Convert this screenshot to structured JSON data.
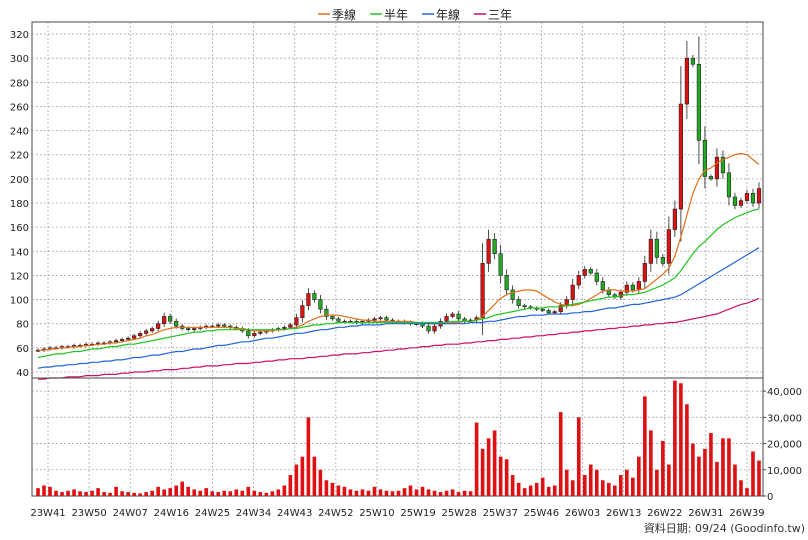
{
  "legend": [
    {
      "label": "季線",
      "color": "#e0701a"
    },
    {
      "label": "半年",
      "color": "#22c322"
    },
    {
      "label": "年線",
      "color": "#2266dd"
    },
    {
      "label": "三年",
      "color": "#cc1166"
    }
  ],
  "credit": "資料日期: 09/24  (Goodinfo.tw)",
  "chart_data": {
    "type": "candlestick+volume",
    "x_ticks": [
      "23W41",
      "23W50",
      "24W07",
      "24W16",
      "24W25",
      "24W34",
      "24W43",
      "24W52",
      "25W10",
      "25W19",
      "25W28",
      "25W37",
      "25W46",
      "26W03",
      "26W13",
      "26W22",
      "26W31",
      "26W39"
    ],
    "price_axis": {
      "ylim": [
        35,
        330
      ],
      "ticks": [
        40,
        60,
        80,
        100,
        120,
        140,
        160,
        180,
        200,
        220,
        240,
        260,
        280,
        300,
        320
      ]
    },
    "volume_axis": {
      "ylim": [
        0,
        45000
      ],
      "ticks": [
        0,
        10000,
        20000,
        30000,
        40000
      ],
      "tick_labels": [
        "0",
        "10,000",
        "20,000",
        "30,000",
        "40,000"
      ]
    },
    "close": [
      58,
      59,
      60,
      60,
      61,
      61,
      62,
      62,
      63,
      63,
      64,
      64,
      65,
      66,
      67,
      68,
      70,
      72,
      74,
      76,
      80,
      86,
      82,
      78,
      76,
      75,
      76,
      77,
      78,
      78,
      79,
      78,
      77,
      76,
      74,
      70,
      72,
      73,
      74,
      75,
      76,
      77,
      79,
      85,
      95,
      105,
      100,
      92,
      86,
      84,
      82,
      82,
      82,
      81,
      82,
      83,
      84,
      85,
      83,
      82,
      82,
      81,
      80,
      80,
      78,
      74,
      78,
      82,
      86,
      88,
      84,
      82,
      83,
      85,
      130,
      150,
      138,
      120,
      108,
      100,
      95,
      94,
      93,
      92,
      91,
      89,
      90,
      95,
      100,
      112,
      120,
      125,
      122,
      115,
      108,
      104,
      102,
      106,
      112,
      108,
      115,
      130,
      150,
      135,
      130,
      158,
      175,
      262,
      300,
      295,
      232,
      202,
      200,
      218,
      205,
      185,
      178,
      182,
      188,
      180,
      192
    ],
    "ma_quarter": [
      58,
      58,
      59,
      59,
      60,
      60,
      61,
      61,
      62,
      62,
      63,
      63,
      64,
      64,
      65,
      66,
      67,
      68,
      70,
      71,
      73,
      75,
      76,
      77,
      77,
      77,
      77,
      77,
      77,
      77,
      77,
      77,
      77,
      76,
      76,
      75,
      74,
      74,
      74,
      74,
      75,
      75,
      76,
      77,
      79,
      82,
      84,
      86,
      87,
      87,
      87,
      86,
      85,
      84,
      83,
      83,
      82,
      82,
      82,
      82,
      82,
      82,
      82,
      81,
      81,
      80,
      80,
      80,
      80,
      81,
      81,
      82,
      82,
      83,
      86,
      91,
      96,
      101,
      104,
      106,
      107,
      108,
      108,
      107,
      104,
      101,
      98,
      96,
      95,
      95,
      96,
      98,
      101,
      104,
      107,
      108,
      108,
      107,
      107,
      107,
      108,
      109,
      113,
      117,
      121,
      126,
      136,
      152,
      170,
      188,
      200,
      207,
      209,
      213,
      216,
      218,
      220,
      221,
      220,
      216,
      212
    ],
    "ma_half": [
      52,
      53,
      54,
      55,
      55,
      56,
      57,
      57,
      58,
      59,
      59,
      60,
      61,
      61,
      62,
      63,
      63,
      64,
      65,
      66,
      67,
      68,
      69,
      70,
      71,
      72,
      73,
      73,
      74,
      74,
      75,
      75,
      75,
      75,
      75,
      75,
      75,
      75,
      75,
      75,
      75,
      75,
      76,
      76,
      77,
      78,
      79,
      79,
      80,
      80,
      81,
      81,
      81,
      81,
      81,
      81,
      81,
      81,
      81,
      81,
      81,
      81,
      81,
      81,
      81,
      81,
      81,
      81,
      81,
      82,
      82,
      82,
      82,
      83,
      84,
      85,
      87,
      88,
      89,
      90,
      91,
      92,
      93,
      93,
      93,
      94,
      94,
      94,
      95,
      96,
      97,
      98,
      99,
      100,
      101,
      102,
      102,
      103,
      104,
      104,
      105,
      106,
      108,
      110,
      112,
      115,
      118,
      124,
      131,
      138,
      144,
      148,
      153,
      158,
      162,
      165,
      168,
      170,
      172,
      174,
      175
    ],
    "ma_year": [
      43,
      44,
      44,
      45,
      45,
      46,
      46,
      47,
      47,
      48,
      48,
      49,
      49,
      50,
      50,
      51,
      52,
      52,
      53,
      54,
      54,
      55,
      56,
      57,
      57,
      58,
      59,
      59,
      60,
      61,
      62,
      62,
      63,
      64,
      65,
      65,
      66,
      67,
      68,
      68,
      69,
      70,
      71,
      72,
      72,
      73,
      74,
      75,
      75,
      76,
      77,
      77,
      78,
      78,
      79,
      79,
      79,
      79,
      80,
      80,
      80,
      80,
      80,
      80,
      80,
      80,
      80,
      80,
      80,
      80,
      80,
      80,
      81,
      81,
      81,
      82,
      82,
      83,
      84,
      85,
      86,
      86,
      87,
      87,
      87,
      88,
      88,
      88,
      88,
      89,
      89,
      90,
      90,
      91,
      92,
      93,
      93,
      94,
      95,
      96,
      96,
      97,
      98,
      99,
      100,
      101,
      102,
      104,
      107,
      110,
      113,
      116,
      119,
      122,
      125,
      128,
      131,
      134,
      137,
      140,
      143
    ],
    "ma_3y": [
      34,
      34,
      35,
      35,
      35,
      36,
      36,
      36,
      37,
      37,
      37,
      38,
      38,
      38,
      39,
      39,
      40,
      40,
      40,
      41,
      41,
      42,
      42,
      42,
      43,
      43,
      44,
      44,
      45,
      45,
      45,
      46,
      46,
      47,
      47,
      47,
      48,
      48,
      49,
      49,
      50,
      50,
      51,
      51,
      51,
      52,
      52,
      53,
      53,
      54,
      54,
      55,
      55,
      55,
      56,
      56,
      57,
      57,
      58,
      58,
      59,
      59,
      60,
      60,
      61,
      61,
      62,
      62,
      63,
      63,
      63,
      64,
      64,
      65,
      65,
      66,
      66,
      67,
      67,
      68,
      68,
      69,
      69,
      70,
      70,
      71,
      71,
      72,
      72,
      73,
      73,
      74,
      74,
      75,
      75,
      76,
      76,
      77,
      77,
      78,
      78,
      79,
      79,
      80,
      80,
      81,
      81,
      82,
      83,
      84,
      85,
      86,
      87,
      88,
      90,
      92,
      94,
      96,
      97,
      99,
      101
    ],
    "volume": [
      3000,
      4000,
      3500,
      2000,
      1500,
      2000,
      2500,
      1800,
      1500,
      2000,
      3000,
      1500,
      1200,
      3500,
      1800,
      1500,
      1200,
      1000,
      1500,
      2000,
      3500,
      2500,
      3000,
      4000,
      5500,
      3500,
      2500,
      2000,
      3000,
      1800,
      1500,
      2000,
      1800,
      2500,
      2000,
      3500,
      2000,
      1500,
      1200,
      1800,
      2500,
      4000,
      8000,
      12000,
      15000,
      30000,
      15000,
      10000,
      6000,
      5000,
      4000,
      3500,
      2500,
      2000,
      2500,
      2000,
      3500,
      2500,
      2000,
      1800,
      2000,
      3000,
      4000,
      2500,
      3500,
      2500,
      2000,
      1500,
      2000,
      2500,
      1500,
      2000,
      1800,
      28000,
      18000,
      22000,
      25000,
      15000,
      14000,
      8000,
      5000,
      3000,
      4000,
      5000,
      7000,
      3500,
      4000,
      32000,
      10000,
      6000,
      30000,
      8000,
      12000,
      10000,
      6000,
      5000,
      4000,
      8000,
      10000,
      7000,
      15000,
      38000,
      25000,
      10000,
      21000,
      12000,
      44000,
      43000,
      35000,
      20000,
      15000,
      18000,
      24000,
      13000,
      22000,
      22000,
      12000,
      6000,
      3000,
      17000,
      13500
    ]
  }
}
